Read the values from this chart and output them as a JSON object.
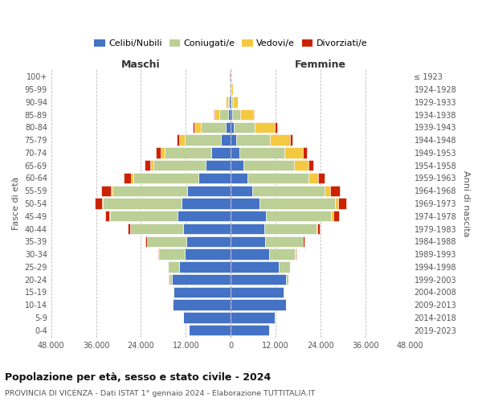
{
  "age_groups": [
    "0-4",
    "5-9",
    "10-14",
    "15-19",
    "20-24",
    "25-29",
    "30-34",
    "35-39",
    "40-44",
    "45-49",
    "50-54",
    "55-59",
    "60-64",
    "65-69",
    "70-74",
    "75-79",
    "80-84",
    "85-89",
    "90-94",
    "95-99",
    "100+"
  ],
  "birth_years": [
    "2019-2023",
    "2014-2018",
    "2009-2013",
    "2004-2008",
    "1999-2003",
    "1994-1998",
    "1989-1993",
    "1984-1988",
    "1979-1983",
    "1974-1978",
    "1969-1973",
    "1964-1968",
    "1959-1963",
    "1954-1958",
    "1949-1953",
    "1944-1948",
    "1939-1943",
    "1934-1938",
    "1929-1933",
    "1924-1928",
    "≤ 1923"
  ],
  "colors": {
    "celibi": "#4472C4",
    "coniugati": "#BBCF96",
    "vedovi": "#F5C842",
    "divorziati": "#CC2200"
  },
  "males": {
    "celibi": [
      11200,
      12700,
      15600,
      15200,
      15700,
      13700,
      12200,
      11800,
      12800,
      14200,
      13200,
      11700,
      8600,
      6700,
      5100,
      2700,
      1400,
      650,
      370,
      180,
      75
    ],
    "coniugati": [
      10,
      20,
      50,
      200,
      700,
      3000,
      7000,
      10500,
      14000,
      18000,
      21000,
      20000,
      17500,
      14000,
      12500,
      9500,
      6500,
      2500,
      400,
      100,
      30
    ],
    "vedovi": [
      5,
      5,
      10,
      20,
      30,
      50,
      40,
      80,
      100,
      200,
      300,
      350,
      500,
      900,
      1200,
      1500,
      1800,
      1200,
      500,
      150,
      40
    ],
    "divorziati": [
      5,
      5,
      10,
      20,
      50,
      100,
      200,
      350,
      700,
      1200,
      1800,
      2500,
      2000,
      1500,
      1200,
      800,
      500,
      300,
      80,
      20,
      10
    ]
  },
  "females": {
    "celibi": [
      10200,
      11800,
      14700,
      14200,
      14700,
      12800,
      10200,
      9200,
      8900,
      9400,
      7800,
      5700,
      4400,
      3400,
      2400,
      1400,
      850,
      450,
      270,
      130,
      55
    ],
    "coniugati": [
      10,
      20,
      50,
      200,
      700,
      3000,
      7000,
      10000,
      14000,
      17500,
      20000,
      19500,
      16500,
      13500,
      12000,
      9000,
      5500,
      2000,
      350,
      80,
      20
    ],
    "vedovi": [
      5,
      5,
      10,
      20,
      30,
      60,
      80,
      150,
      300,
      600,
      1000,
      1500,
      2500,
      4000,
      5000,
      5500,
      5500,
      3500,
      1200,
      300,
      80
    ],
    "divorziati": [
      5,
      5,
      10,
      20,
      50,
      100,
      200,
      350,
      700,
      1500,
      2000,
      2500,
      1800,
      1200,
      1000,
      700,
      500,
      250,
      80,
      20,
      10
    ]
  },
  "xlim": 48000,
  "xlabel_left": "Maschi",
  "xlabel_right": "Femmine",
  "ylabel_left": "Fasce di età",
  "ylabel_right": "Anni di nascita",
  "title": "Popolazione per età, sesso e stato civile - 2024",
  "subtitle": "PROVINCIA DI VICENZA - Dati ISTAT 1° gennaio 2024 - Elaborazione TUTTITALIA.IT",
  "legend_labels": [
    "Celibi/Nubili",
    "Coniugati/e",
    "Vedovi/e",
    "Divorziati/e"
  ],
  "bg_color": "#ffffff",
  "grid_color": "#bbbbbb",
  "bar_height": 0.85
}
